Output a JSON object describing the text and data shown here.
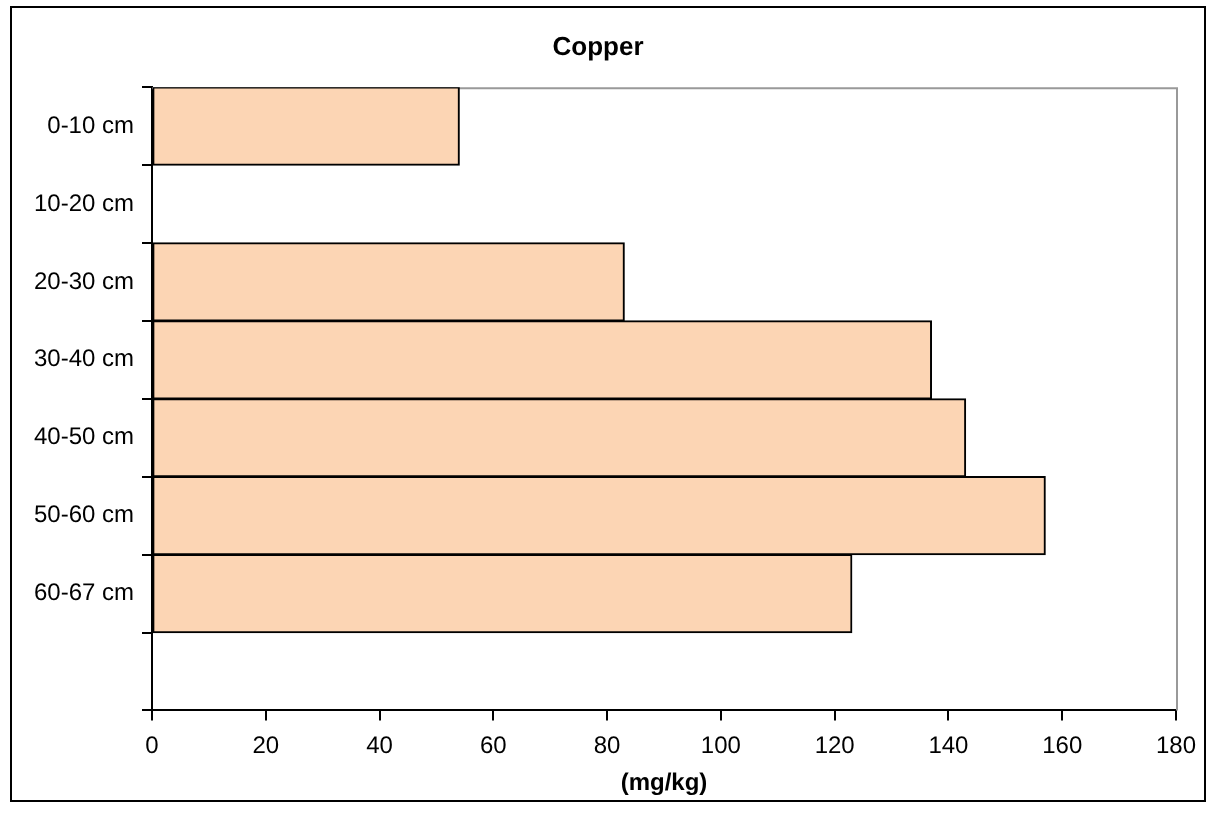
{
  "chart_data": {
    "type": "bar",
    "orientation": "horizontal",
    "title": "Copper",
    "xlabel": "(mg/kg)",
    "categories": [
      "0-10 cm",
      "10-20 cm",
      "20-30 cm",
      "30-40 cm",
      "40-50 cm",
      "50-60 cm",
      "60-67 cm",
      null
    ],
    "values": [
      54,
      null,
      83,
      137,
      143,
      157,
      123,
      null
    ],
    "color": "#fcd5b4",
    "xlim": [
      0,
      180
    ],
    "xticks": [
      0,
      20,
      40,
      60,
      80,
      100,
      120,
      140,
      160,
      180
    ],
    "grid": false,
    "legend": false
  }
}
